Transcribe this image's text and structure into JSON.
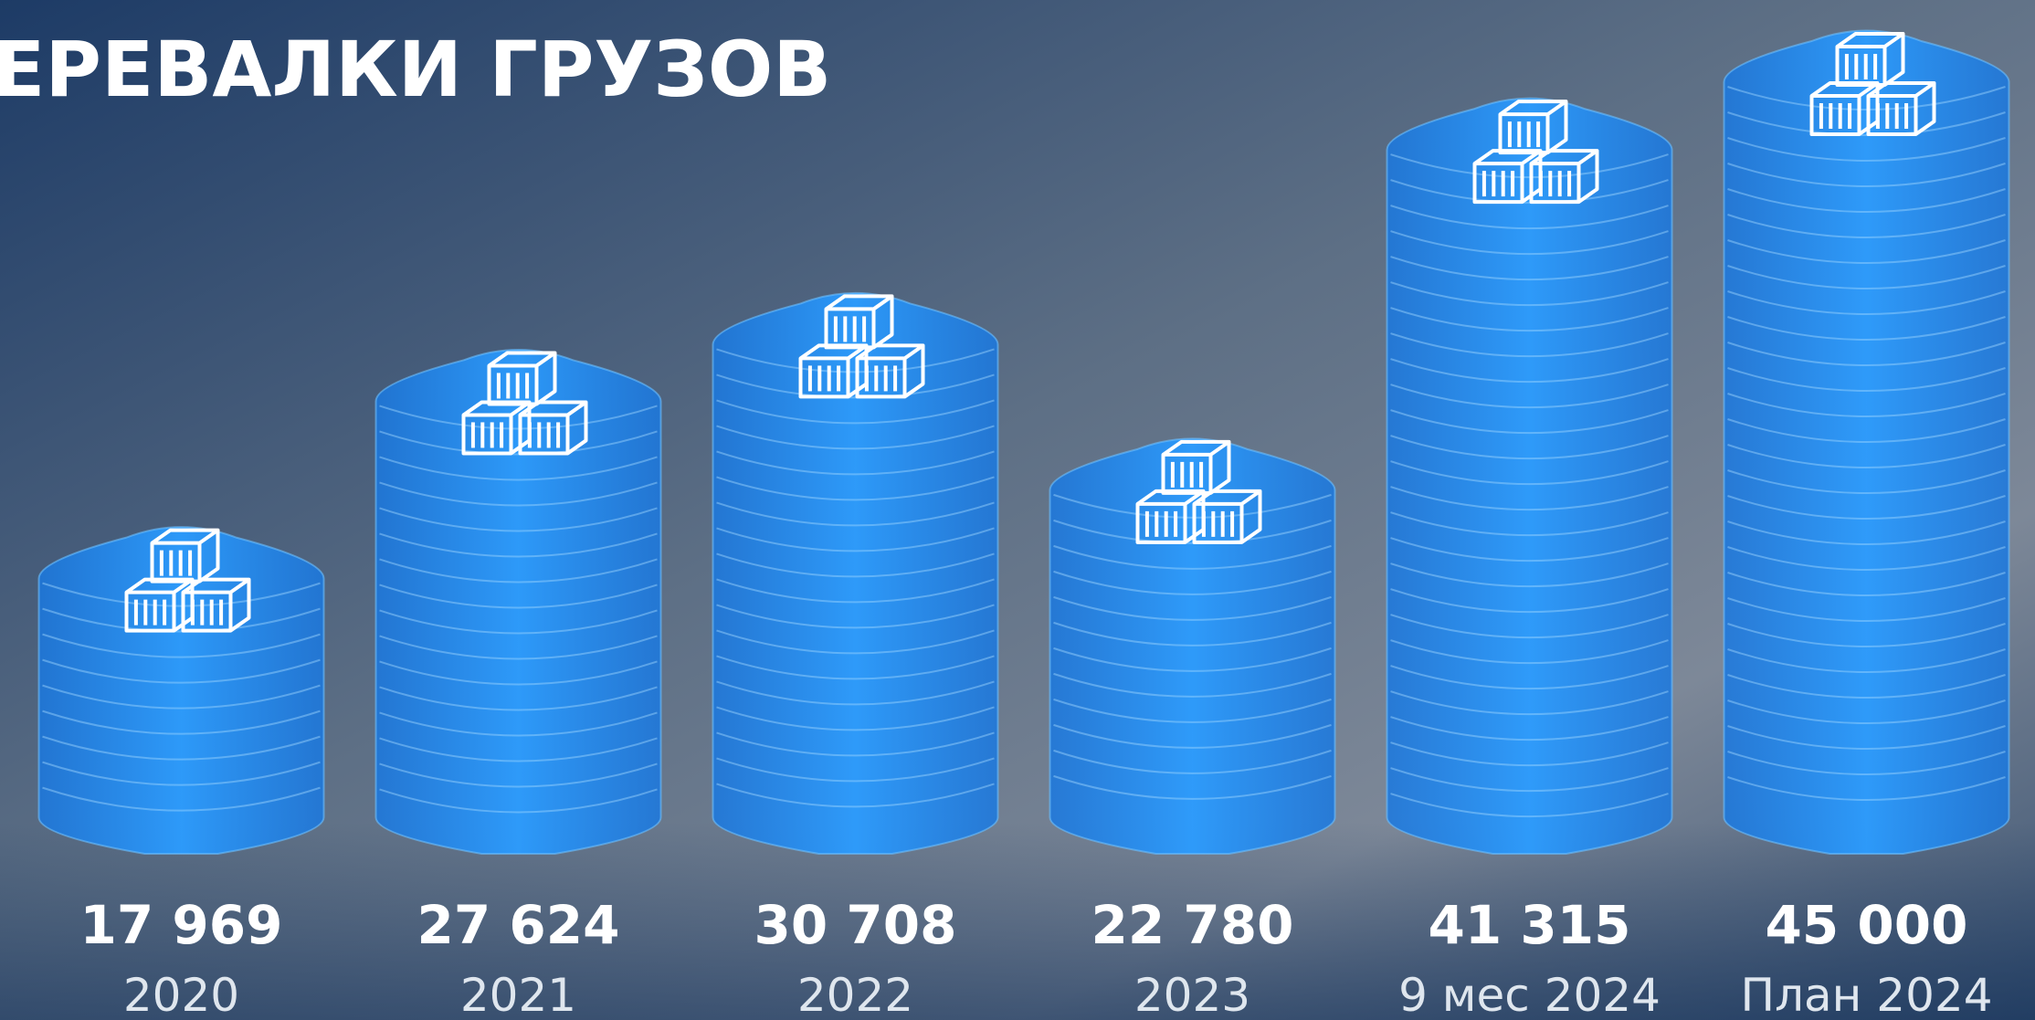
{
  "chart_data": {
    "type": "bar",
    "title": "ЕРЕВАЛКИ ГРУЗОВ",
    "categories": [
      "2020",
      "2021",
      "2022",
      "2023",
      "9 мес 2024",
      "План 2024"
    ],
    "values": [
      17969,
      27624,
      30708,
      22780,
      41315,
      45000
    ],
    "value_labels": [
      "17 969",
      "27 624",
      "30 708",
      "22 780",
      "41 315",
      "45 000"
    ],
    "color": "#1e88f0"
  }
}
